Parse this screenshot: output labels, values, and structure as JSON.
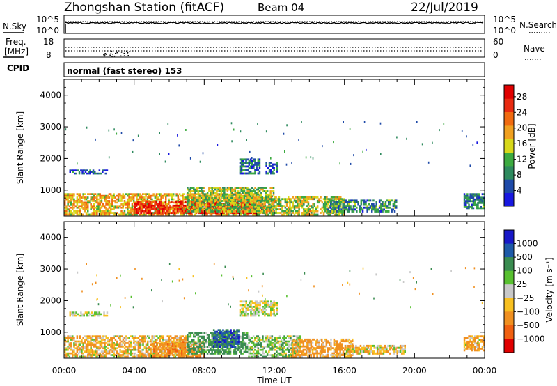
{
  "header": {
    "title": "Zhongshan Station (fitACF)",
    "beam": "Beam 04",
    "date": "22/Jul/2019"
  },
  "noise_panel": {
    "left_label": "N.Sky",
    "right_label": "N.Search",
    "left_ticks": [
      "10^5",
      "10^0"
    ],
    "right_ticks": [
      "10^5",
      "10^0"
    ]
  },
  "freq_panel": {
    "left_label_line1": "Freq.",
    "left_label_line2": "[MHz]",
    "right_label": "Nave",
    "left_ticks": [
      "18",
      "8"
    ],
    "right_ticks": [
      "60",
      "0"
    ]
  },
  "cpid_panel": {
    "label": "CPID",
    "text": "normal (fast stereo) 153"
  },
  "colors": {
    "power_scale": [
      "#1818e0",
      "#1e4aa8",
      "#2e8a5e",
      "#3caa40",
      "#d8d81a",
      "#f0a020",
      "#f06a10",
      "#e82a10",
      "#e00000"
    ],
    "velocity_scale": [
      "#1818c8",
      "#1e5aa8",
      "#3a8c50",
      "#58c030",
      "#c8c8c8",
      "#f8c020",
      "#f09020",
      "#f06010",
      "#e00000"
    ]
  },
  "chart_data": [
    {
      "type": "heatmap",
      "name": "power",
      "xlabel": "",
      "ylabel": "Slant Range [km]",
      "x_range_hours": [
        0,
        24
      ],
      "ylim": [
        180,
        4500
      ],
      "yticks": [
        "1000",
        "2000",
        "3000",
        "4000"
      ],
      "colorbar": {
        "label": "Power [dB]",
        "ticks": [
          "28",
          "24",
          "20",
          "16",
          "12",
          "8",
          "4"
        ],
        "range": [
          0,
          31
        ]
      },
      "echo_regions": [
        {
          "t": [
            0.0,
            11.0
          ],
          "range_km": [
            200,
            900
          ],
          "value": 18
        },
        {
          "t": [
            4.0,
            11.5
          ],
          "range_km": [
            250,
            650
          ],
          "value": 27
        },
        {
          "t": [
            7.0,
            12.0
          ],
          "range_km": [
            300,
            1100
          ],
          "value": 14
        },
        {
          "t": [
            11.0,
            16.0
          ],
          "range_km": [
            200,
            800
          ],
          "value": 15
        },
        {
          "t": [
            15.0,
            19.0
          ],
          "range_km": [
            300,
            700
          ],
          "value": 9
        },
        {
          "t": [
            0.3,
            2.5
          ],
          "range_km": [
            1500,
            1650
          ],
          "value": 6
        },
        {
          "t": [
            10.0,
            11.2
          ],
          "range_km": [
            1500,
            2000
          ],
          "value": 7
        },
        {
          "t": [
            11.5,
            12.2
          ],
          "range_km": [
            1500,
            1900
          ],
          "value": 6
        },
        {
          "t": [
            22.8,
            24.0
          ],
          "range_km": [
            400,
            900
          ],
          "value": 8
        }
      ]
    },
    {
      "type": "heatmap",
      "name": "velocity",
      "xlabel": "Time UT",
      "ylabel": "Slant Range [km]",
      "x_range_hours": [
        0,
        24
      ],
      "ylim": [
        180,
        4500
      ],
      "yticks": [
        "1000",
        "2000",
        "3000",
        "4000"
      ],
      "xticks": [
        "00:00",
        "04:00",
        "08:00",
        "12:00",
        "16:00",
        "20:00",
        "00:00"
      ],
      "colorbar": {
        "label": "Velocity [m s⁻¹]",
        "ticks": [
          "1000",
          "500",
          "100",
          "25",
          "−25",
          "−100",
          "−500",
          "−1000"
        ]
      },
      "echo_regions": [
        {
          "t": [
            0.0,
            7.0
          ],
          "range_km": [
            200,
            900
          ],
          "value": -100
        },
        {
          "t": [
            5.0,
            8.0
          ],
          "range_km": [
            200,
            700
          ],
          "value": -300
        },
        {
          "t": [
            7.0,
            10.5
          ],
          "range_km": [
            300,
            1000
          ],
          "value": 200
        },
        {
          "t": [
            8.5,
            10.0
          ],
          "range_km": [
            500,
            1100
          ],
          "value": 700
        },
        {
          "t": [
            10.5,
            13.5
          ],
          "range_km": [
            200,
            900
          ],
          "value": 50
        },
        {
          "t": [
            13.0,
            16.5
          ],
          "range_km": [
            200,
            800
          ],
          "value": -200
        },
        {
          "t": [
            16.0,
            19.5
          ],
          "range_km": [
            300,
            600
          ],
          "value": -60
        },
        {
          "t": [
            0.3,
            2.5
          ],
          "range_km": [
            1500,
            1650
          ],
          "value": 0
        },
        {
          "t": [
            10.0,
            12.2
          ],
          "range_km": [
            1500,
            2000
          ],
          "value": 0
        },
        {
          "t": [
            22.8,
            24.0
          ],
          "range_km": [
            400,
            900
          ],
          "value": -150
        }
      ]
    }
  ]
}
